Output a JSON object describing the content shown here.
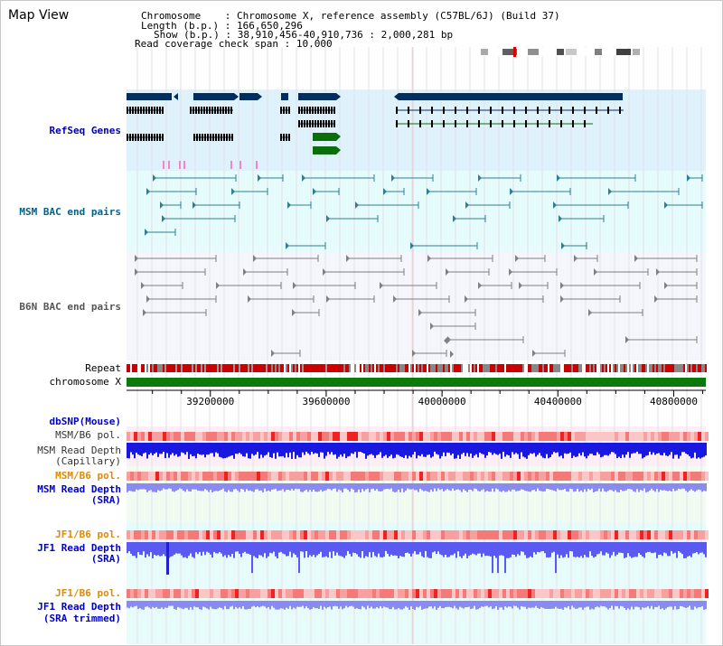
{
  "title": "Map View",
  "info": {
    "chromosome_label": "Chromosome",
    "chromosome_value": "Chromosome X, reference assembly (C57BL/6J) (Build 37)",
    "length_label": "Length (b.p.)",
    "length_value": "166,650,296",
    "show_label": "Show (b.p.)",
    "show_value": "38,910,456-40,910,736 : 2,000,281 bp",
    "coverage_label": "Read coverage check span",
    "coverage_value": "10,000"
  },
  "tracks": {
    "refseq": "RefSeq Genes",
    "msm_bac": "MSM BAC end pairs",
    "b6n_bac": "B6N BAC end pairs",
    "repeat": "Repeat",
    "chromosome": "chromosome X",
    "dbsnp": "dbSNP(Mouse)",
    "msm_b6_pol_1": "MSM/B6 pol.",
    "msm_read_depth_cap_1": "MSM Read Depth",
    "msm_read_depth_cap_2": "(Capillary)",
    "msm_b6_pol_2": "MSM/B6 pol.",
    "msm_read_depth_sra_1": "MSM Read Depth",
    "msm_read_depth_sra_2": "(SRA)",
    "jf1_b6_pol_1": "JF1/B6 pol.",
    "jf1_read_depth_sra_1": "JF1 Read Depth",
    "jf1_read_depth_sra_2": "(SRA)",
    "jf1_b6_pol_2": "JF1/B6 pol.",
    "jf1_read_depth_trim_1": "JF1 Read Depth",
    "jf1_read_depth_trim_2": "(SRA trimmed)"
  },
  "axis": {
    "ticks": [
      {
        "label": "39200000",
        "value": 39200000
      },
      {
        "label": "39600000",
        "value": 39600000
      },
      {
        "label": "40000000",
        "value": 40000000
      },
      {
        "label": "40400000",
        "value": 40400000
      },
      {
        "label": "40800000",
        "value": 40800000
      }
    ],
    "start": 38910456,
    "end": 40910736
  },
  "colors": {
    "refseq_bg": "#dff2fb",
    "msm_bac_bg": "#e6fbfb",
    "b6n_bg": "#f5f5fc",
    "gene_navy": "#002e5f",
    "gene_green": "#0a6e0a",
    "bac_teal": "#2f7f8f",
    "bac_grey": "#808080",
    "repeat_red": "#cc0000",
    "chromosome_green": "#0b7a0b",
    "depth_blue": "#2f2fee",
    "pol_red": "#ee6666"
  }
}
